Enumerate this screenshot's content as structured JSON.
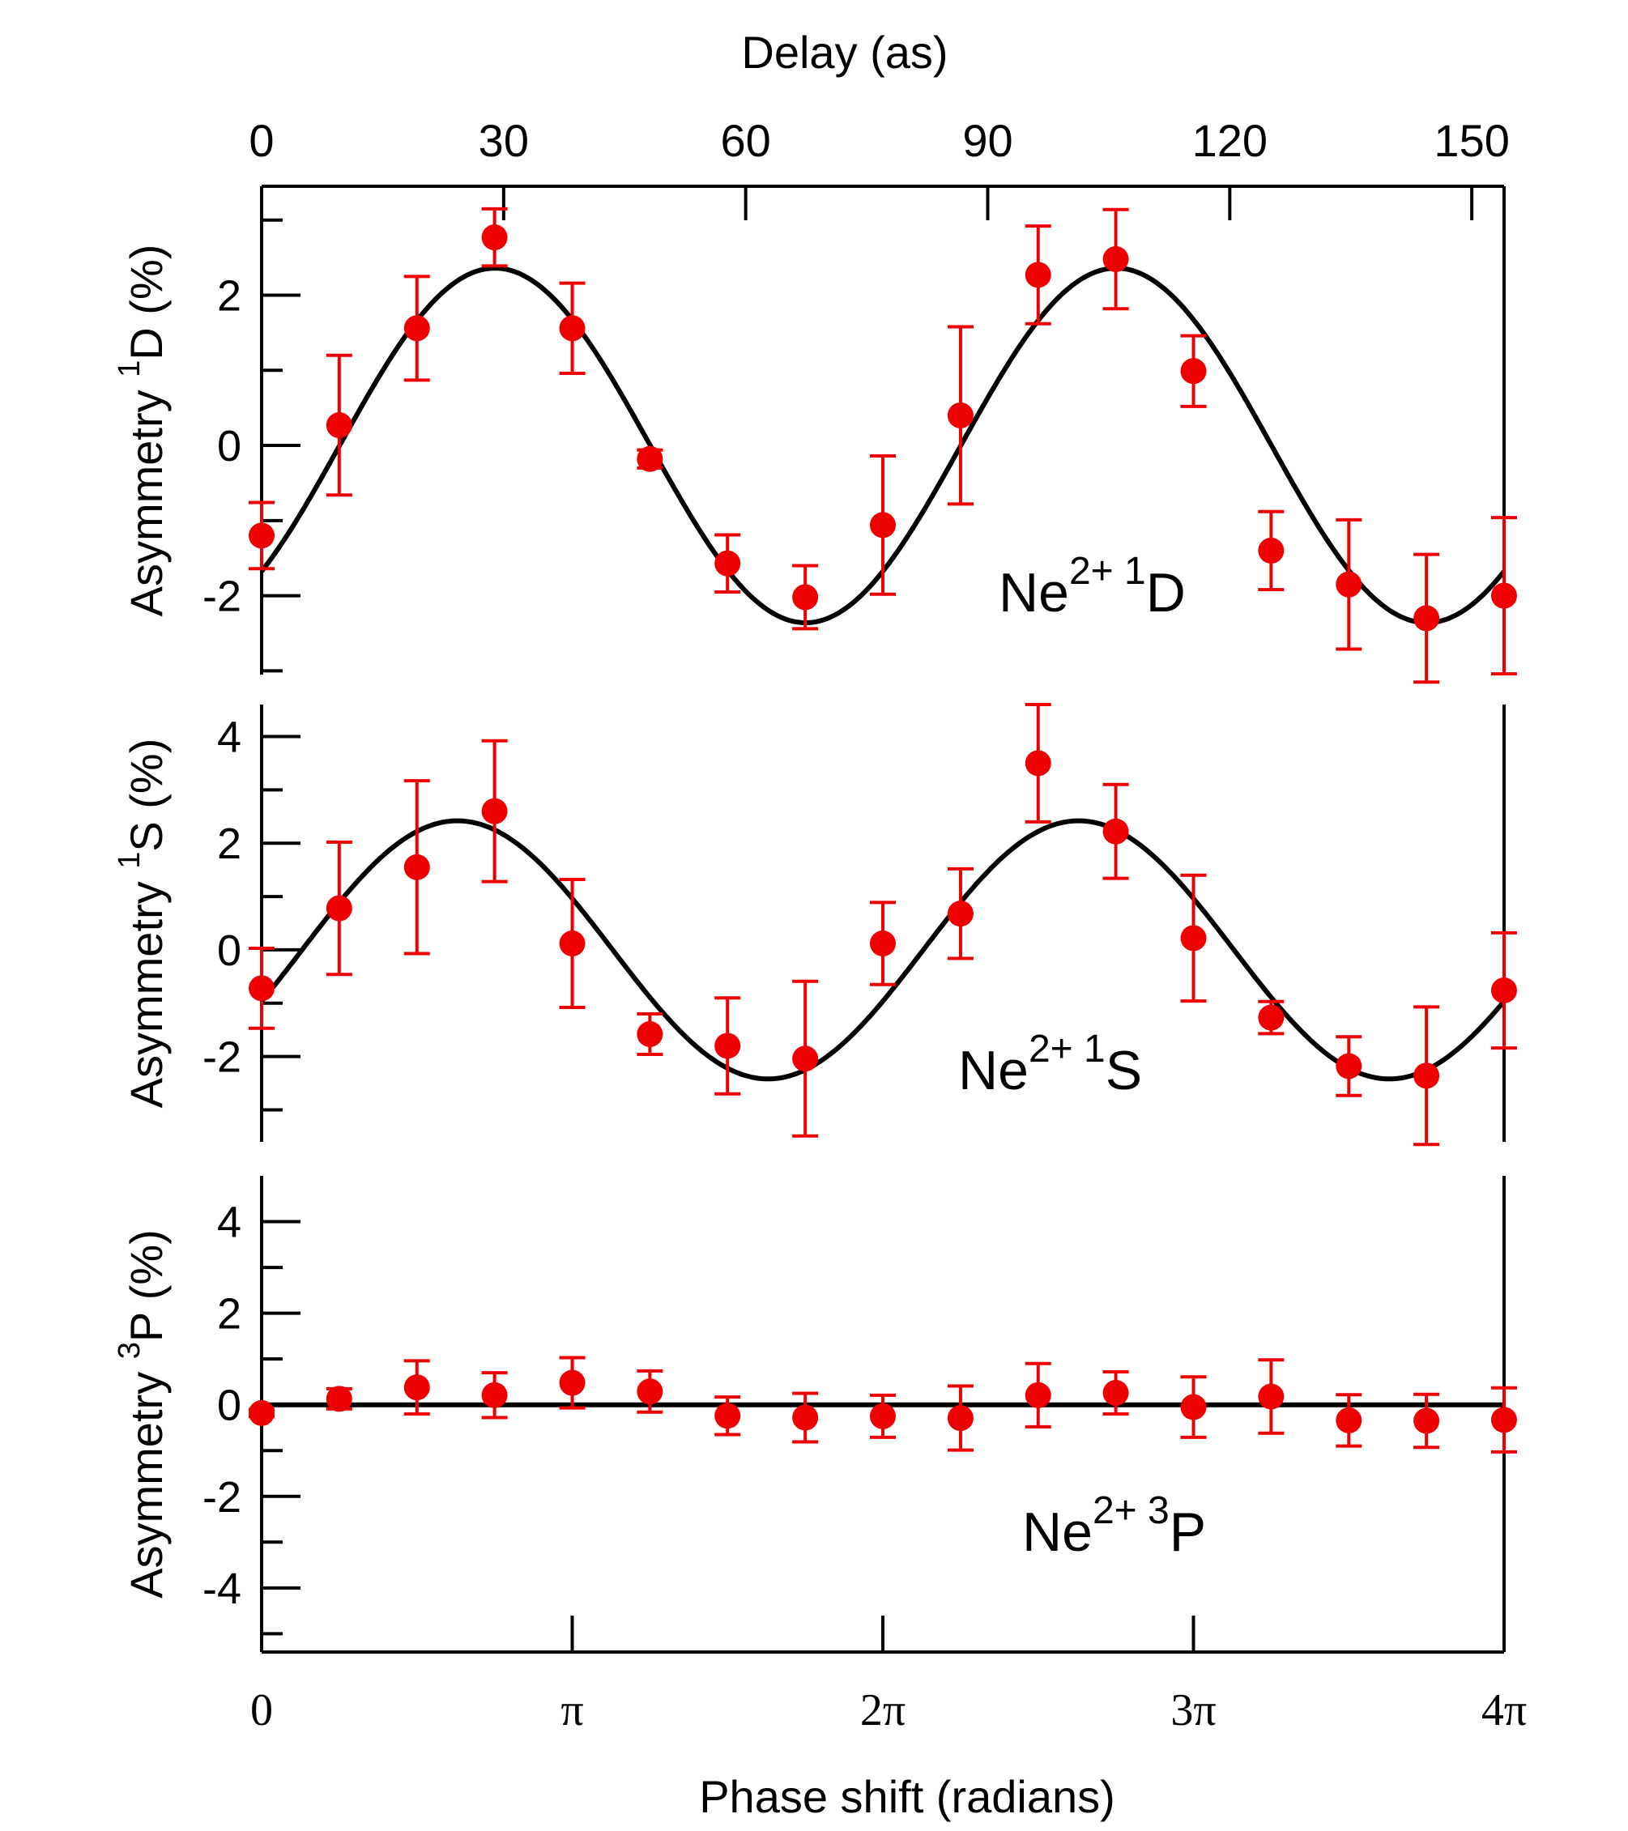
{
  "colors": {
    "data": "#ee0000",
    "fit": "#000000",
    "axes": "#000000"
  },
  "chart_data": {
    "type": "scatter",
    "title": "",
    "top_axis": {
      "label": "Delay (as)",
      "ticks": [
        {
          "value": 0,
          "label": "0"
        },
        {
          "value": 30,
          "label": "30"
        },
        {
          "value": 60,
          "label": "60"
        },
        {
          "value": 90,
          "label": "90"
        },
        {
          "value": 120,
          "label": "120"
        },
        {
          "value": 150,
          "label": "150"
        }
      ],
      "range": [
        0,
        154
      ]
    },
    "bottom_axis": {
      "label": "Phase shift (radians)",
      "ticks": [
        {
          "value": 0,
          "label": "0"
        },
        {
          "value": 3.14159,
          "label": "π"
        },
        {
          "value": 6.28319,
          "label": "2π"
        },
        {
          "value": 9.42478,
          "label": "3π"
        },
        {
          "value": 12.56637,
          "label": "4π"
        }
      ],
      "range": [
        0,
        12.56637
      ]
    },
    "x": [
      0,
      0.785,
      1.571,
      2.356,
      3.142,
      3.927,
      4.712,
      5.498,
      6.283,
      7.069,
      7.854,
      8.639,
      9.425,
      10.21,
      10.996,
      11.781,
      12.566
    ],
    "panels": [
      {
        "name": "1D",
        "label_main": "Ne",
        "label_sup": "2+ 1",
        "label_state": "D",
        "ylabel_main": "Asymmetry ",
        "ylabel_sup": "1",
        "ylabel_rest": "D (%)",
        "ylim": [
          -3.05,
          3.45
        ],
        "yticks": [
          {
            "value": -2,
            "label": "-2"
          },
          {
            "value": 0,
            "label": "0"
          },
          {
            "value": 2,
            "label": "2"
          }
        ],
        "minor_yticks": [
          -3,
          -1,
          1,
          3
        ],
        "y": [
          -1.2,
          0.27,
          1.56,
          2.77,
          1.56,
          -0.18,
          -1.57,
          -2.02,
          -1.06,
          0.4,
          2.27,
          2.48,
          0.99,
          -1.4,
          -1.85,
          -2.3,
          -2.0
        ],
        "err": [
          0.44,
          0.93,
          0.69,
          0.38,
          0.6,
          0.12,
          0.38,
          0.42,
          0.92,
          1.18,
          0.65,
          0.66,
          0.47,
          0.52,
          0.86,
          0.85,
          1.04
        ],
        "fit": {
          "amplitude": 2.36,
          "phase_peak": 2.36
        }
      },
      {
        "name": "1S",
        "label_main": "Ne",
        "label_sup": "2+ 1",
        "label_state": "S",
        "ylabel_main": "Asymmetry ",
        "ylabel_sup": "1",
        "ylabel_rest": "S (%)",
        "ylim": [
          -3.6,
          4.6
        ],
        "yticks": [
          {
            "value": -2,
            "label": "-2"
          },
          {
            "value": 0,
            "label": "0"
          },
          {
            "value": 2,
            "label": "2"
          },
          {
            "value": 4,
            "label": "4"
          }
        ],
        "minor_yticks": [
          -3,
          -1,
          1,
          3
        ],
        "y": [
          -0.72,
          0.78,
          1.55,
          2.6,
          0.12,
          -1.58,
          -1.8,
          -2.04,
          0.12,
          0.68,
          3.5,
          2.22,
          0.22,
          -1.27,
          -2.18,
          -2.36,
          -0.76
        ],
        "err": [
          0.75,
          1.24,
          1.62,
          1.32,
          1.2,
          0.38,
          0.9,
          1.45,
          0.77,
          0.84,
          1.1,
          0.88,
          1.18,
          0.3,
          0.55,
          1.29,
          1.08
        ],
        "fit": {
          "amplitude": 2.42,
          "phase_peak": 1.98
        }
      },
      {
        "name": "3P",
        "label_main": "Ne",
        "label_sup": "2+ 3",
        "label_state": "P",
        "ylabel_main": "Asymmetry ",
        "ylabel_sup": "3",
        "ylabel_rest": "P (%)",
        "ylim": [
          -5.4,
          5.0
        ],
        "yticks": [
          {
            "value": -4,
            "label": "-4"
          },
          {
            "value": -2,
            "label": "-2"
          },
          {
            "value": 0,
            "label": "0"
          },
          {
            "value": 2,
            "label": "2"
          },
          {
            "value": 4,
            "label": "4"
          }
        ],
        "minor_yticks": [
          -5,
          -3,
          -1,
          1,
          3
        ],
        "y": [
          -0.18,
          0.13,
          0.38,
          0.21,
          0.48,
          0.29,
          -0.24,
          -0.28,
          -0.25,
          -0.29,
          0.21,
          0.26,
          -0.05,
          0.18,
          -0.34,
          -0.35,
          -0.33
        ],
        "err": [
          0.08,
          0.22,
          0.58,
          0.49,
          0.55,
          0.45,
          0.41,
          0.53,
          0.46,
          0.7,
          0.69,
          0.46,
          0.66,
          0.8,
          0.56,
          0.58,
          0.7
        ],
        "fit": {
          "amplitude": 0,
          "phase_peak": 0
        }
      }
    ]
  }
}
